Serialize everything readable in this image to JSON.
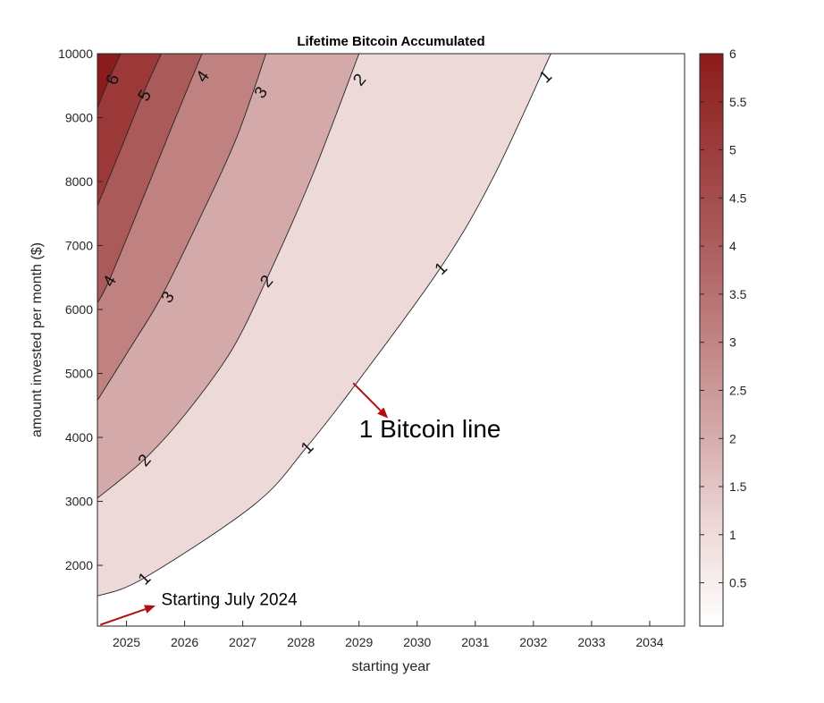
{
  "chart_data": {
    "type": "contourf",
    "title": "Lifetime Bitcoin Accumulated",
    "xlabel": "starting year",
    "ylabel": "amount invested per month ($)",
    "xlim": [
      2024.5,
      2034.6
    ],
    "ylim": [
      1050,
      10000
    ],
    "xticks": [
      2025,
      2026,
      2027,
      2028,
      2029,
      2030,
      2031,
      2032,
      2033,
      2034
    ],
    "yticks": [
      2000,
      3000,
      4000,
      5000,
      6000,
      7000,
      8000,
      9000,
      10000
    ],
    "levels": [
      1,
      2,
      3,
      4,
      5,
      6
    ],
    "colors": {
      "below_1": "#ffffff",
      "1_2": "#eed9d9",
      "2_3": "#d4a9a9",
      "3_4": "#c08181",
      "4_5": "#ab5a5a",
      "5_6": "#9b3939",
      "above_6": "#8c1b1b"
    },
    "contours": [
      {
        "level": 1,
        "points": [
          [
            2024.5,
            1520
          ],
          [
            2025.3,
            1800
          ],
          [
            2027.2,
            2950
          ],
          [
            2028.1,
            3850
          ],
          [
            2029.0,
            4900
          ],
          [
            2030.4,
            6650
          ],
          [
            2031.3,
            8050
          ],
          [
            2032.3,
            10000
          ]
        ]
      },
      {
        "level": 2,
        "points": [
          [
            2024.5,
            3050
          ],
          [
            2025.3,
            3650
          ],
          [
            2026.0,
            4350
          ],
          [
            2026.8,
            5350
          ],
          [
            2027.4,
            6450
          ],
          [
            2028.2,
            8100
          ],
          [
            2029.0,
            10000
          ]
        ]
      },
      {
        "level": 3,
        "points": [
          [
            2024.5,
            4580
          ],
          [
            2025.1,
            5450
          ],
          [
            2025.6,
            6200
          ],
          [
            2026.3,
            7500
          ],
          [
            2026.9,
            8700
          ],
          [
            2027.4,
            10000
          ]
        ]
      },
      {
        "level": 4,
        "points": [
          [
            2024.5,
            6100
          ],
          [
            2024.7,
            6450
          ],
          [
            2025.2,
            7550
          ],
          [
            2025.8,
            8900
          ],
          [
            2026.3,
            10000
          ]
        ]
      },
      {
        "level": 5,
        "points": [
          [
            2024.5,
            7620
          ],
          [
            2024.9,
            8500
          ],
          [
            2025.3,
            9400
          ],
          [
            2025.6,
            10000
          ]
        ]
      },
      {
        "level": 6,
        "points": [
          [
            2024.5,
            9150
          ],
          [
            2024.7,
            9600
          ],
          [
            2024.9,
            10000
          ]
        ]
      }
    ],
    "contour_labels": [
      {
        "text": "6",
        "x": 2024.75,
        "y": 9600,
        "rot": 70
      },
      {
        "text": "5",
        "x": 2025.3,
        "y": 9350,
        "rot": 60
      },
      {
        "text": "4",
        "x": 2026.3,
        "y": 9650,
        "rot": 55
      },
      {
        "text": "3",
        "x": 2027.3,
        "y": 9400,
        "rot": 55
      },
      {
        "text": "2",
        "x": 2029.0,
        "y": 9600,
        "rot": 50
      },
      {
        "text": "1",
        "x": 2032.2,
        "y": 9650,
        "rot": 45
      },
      {
        "text": "4",
        "x": 2024.7,
        "y": 6450,
        "rot": 60
      },
      {
        "text": "3",
        "x": 2025.7,
        "y": 6200,
        "rot": 55
      },
      {
        "text": "2",
        "x": 2027.4,
        "y": 6450,
        "rot": 50
      },
      {
        "text": "1",
        "x": 2030.4,
        "y": 6650,
        "rot": 45
      },
      {
        "text": "2",
        "x": 2025.3,
        "y": 3650,
        "rot": 50
      },
      {
        "text": "1",
        "x": 2028.1,
        "y": 3850,
        "rot": 45
      },
      {
        "text": "1",
        "x": 2025.3,
        "y": 1800,
        "rot": 45
      }
    ],
    "colorbar": {
      "min": 0.05,
      "max": 6,
      "ticks": [
        0.5,
        1,
        1.5,
        2,
        2.5,
        3,
        3.5,
        4,
        4.5,
        5,
        5.5,
        6
      ],
      "tick_labels": [
        "0.5",
        "1",
        "1.5",
        "2",
        "2.5",
        "3",
        "3.5",
        "4",
        "4.5",
        "5",
        "5.5",
        "6"
      ]
    },
    "annotations": [
      {
        "text": "1 Bitcoin line",
        "size": "large",
        "arrow_from": [
          2028.9,
          4850
        ],
        "arrow_to": [
          2029.5,
          4300
        ],
        "text_at": [
          2029.0,
          4000
        ]
      },
      {
        "text": "Starting July 2024",
        "size": "small",
        "arrow_from": [
          2024.55,
          1070
        ],
        "arrow_to": [
          2025.5,
          1370
        ],
        "text_at": [
          2025.6,
          1380
        ]
      }
    ]
  }
}
